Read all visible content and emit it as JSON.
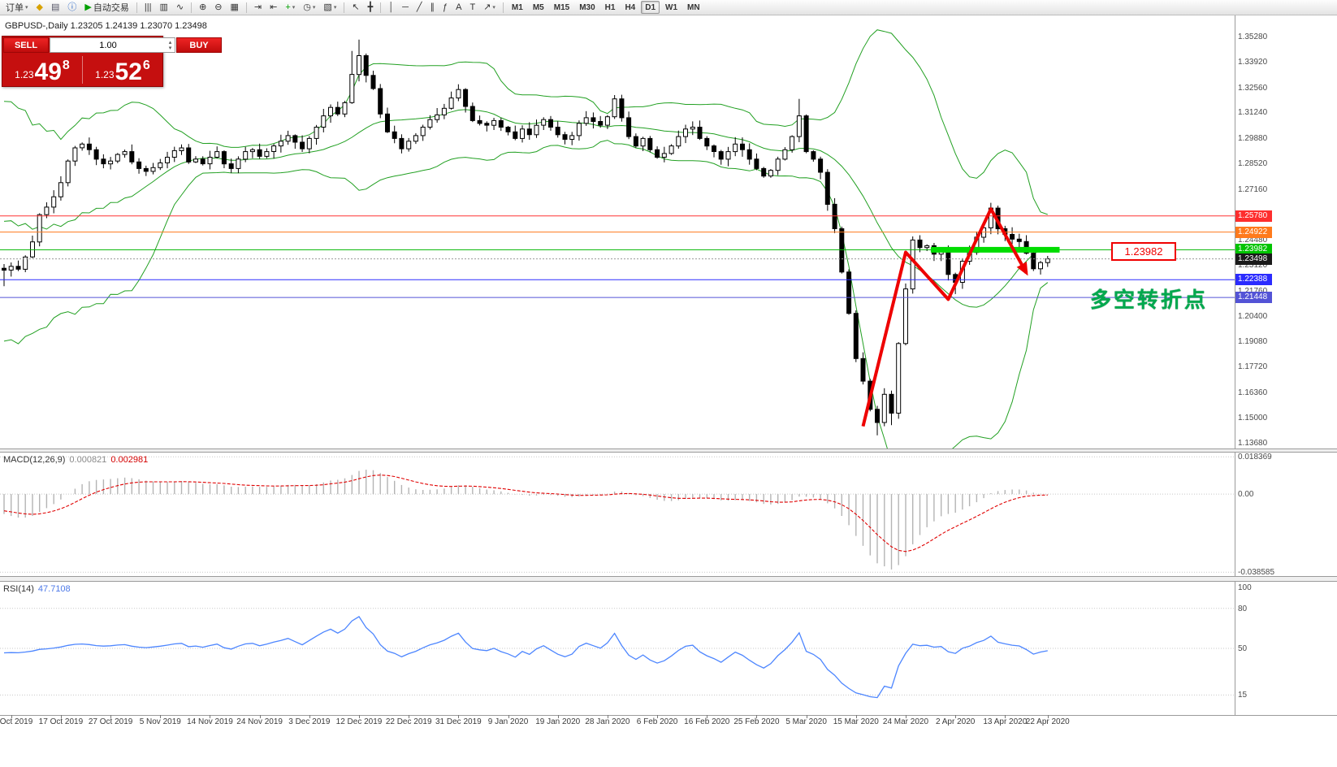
{
  "icons": {
    "caret_down": "▾",
    "caret_up": "▴"
  },
  "toolbar": {
    "active_timeframe": "D1",
    "items": [
      {
        "type": "text",
        "name": "orders-menu-button",
        "label": "订单",
        "caret": true
      },
      {
        "type": "icon",
        "name": "symbols-icon",
        "glyph": "◆",
        "color": "#d8a200"
      },
      {
        "type": "icon",
        "name": "chart-window-icon",
        "glyph": "▤",
        "color": "#556"
      },
      {
        "type": "icon",
        "name": "help-icon",
        "glyph": "ⓘ",
        "color": "#1f5fc4"
      },
      {
        "type": "text",
        "name": "autotrading-button",
        "label": "自动交易",
        "glyph": "▶",
        "color": "#00a000"
      },
      {
        "type": "sep"
      },
      {
        "type": "icon",
        "name": "bar-chart-icon",
        "glyph": "|||",
        "color": "#333"
      },
      {
        "type": "icon",
        "name": "candlestick-chart-icon",
        "glyph": "▥",
        "color": "#333"
      },
      {
        "type": "icon",
        "name": "line-chart-icon",
        "glyph": "∿",
        "color": "#333"
      },
      {
        "type": "sep"
      },
      {
        "type": "icon",
        "name": "zoom-in-icon",
        "glyph": "⊕",
        "color": "#333"
      },
      {
        "type": "icon",
        "name": "zoom-out-icon",
        "glyph": "⊖",
        "color": "#333"
      },
      {
        "type": "icon",
        "name": "tile-windows-icon",
        "glyph": "▦",
        "color": "#333"
      },
      {
        "type": "sep"
      },
      {
        "type": "icon",
        "name": "auto-scroll-icon",
        "glyph": "⇥",
        "color": "#333"
      },
      {
        "type": "icon",
        "name": "chart-shift-icon",
        "glyph": "⇤",
        "color": "#333"
      },
      {
        "type": "icon",
        "name": "indicators-icon",
        "glyph": "+",
        "color": "#00a000",
        "caret": true
      },
      {
        "type": "icon",
        "name": "periods-icon",
        "glyph": "◷",
        "color": "#333",
        "caret": true
      },
      {
        "type": "icon",
        "name": "templates-icon",
        "glyph": "▧",
        "color": "#333",
        "caret": true
      },
      {
        "type": "sep"
      },
      {
        "type": "icon",
        "name": "cursor-icon",
        "glyph": "↖",
        "color": "#333"
      },
      {
        "type": "icon",
        "name": "crosshair-icon",
        "glyph": "╋",
        "color": "#333"
      },
      {
        "type": "sep"
      },
      {
        "type": "icon",
        "name": "vertical-line-icon",
        "glyph": "│",
        "color": "#333"
      },
      {
        "type": "icon",
        "name": "horizontal-line-icon",
        "glyph": "─",
        "color": "#333"
      },
      {
        "type": "icon",
        "name": "trendline-icon",
        "glyph": "╱",
        "color": "#333"
      },
      {
        "type": "icon",
        "name": "channel-icon",
        "glyph": "∥",
        "color": "#333"
      },
      {
        "type": "icon",
        "name": "fibonacci-icon",
        "glyph": "ƒ",
        "color": "#333"
      },
      {
        "type": "icon",
        "name": "text-tool-icon",
        "glyph": "A",
        "color": "#333"
      },
      {
        "type": "icon",
        "name": "label-tool-icon",
        "glyph": "T",
        "color": "#333"
      },
      {
        "type": "icon",
        "name": "arrows-tool-icon",
        "glyph": "↗",
        "color": "#333",
        "caret": true
      },
      {
        "type": "sep"
      },
      {
        "type": "tf",
        "name": "timeframe-m1",
        "label": "M1"
      },
      {
        "type": "tf",
        "name": "timeframe-m5",
        "label": "M5"
      },
      {
        "type": "tf",
        "name": "timeframe-m15",
        "label": "M15"
      },
      {
        "type": "tf",
        "name": "timeframe-m30",
        "label": "M30"
      },
      {
        "type": "tf",
        "name": "timeframe-h1",
        "label": "H1"
      },
      {
        "type": "tf",
        "name": "timeframe-h4",
        "label": "H4"
      },
      {
        "type": "tf",
        "name": "timeframe-d1",
        "label": "D1"
      },
      {
        "type": "tf",
        "name": "timeframe-w1",
        "label": "W1"
      },
      {
        "type": "tf",
        "name": "timeframe-mn",
        "label": "MN"
      }
    ]
  },
  "trade_panel": {
    "sell_label": "SELL",
    "buy_label": "BUY",
    "volume": "1.00",
    "sell_small": "1.23",
    "sell_big": "49",
    "sell_sup": "8",
    "buy_small": "1.23",
    "buy_big": "52",
    "buy_sup": "6"
  },
  "chart": {
    "symbol_line": "GBPUSD-,Daily 1.23205 1.24139 1.23070 1.23498",
    "grid_labels": [
      "1.35280",
      "1.33920",
      "1.32560",
      "1.31240",
      "1.29880",
      "1.28520",
      "1.27160",
      "1.24480",
      "1.23120",
      "1.21760",
      "1.20400",
      "1.19080",
      "1.17720",
      "1.16360",
      "1.15000",
      "1.13680"
    ],
    "price_tags": [
      {
        "text": "1.25780",
        "price": 1.2578,
        "bg": "#fe2e2e"
      },
      {
        "text": "1.24922",
        "price": 1.24922,
        "bg": "#ff7a1c"
      },
      {
        "text": "1.23982",
        "price": 1.23982,
        "bg": "#00c400"
      },
      {
        "text": "1.23498",
        "price": 1.23498,
        "bg": "#1a1a1a"
      },
      {
        "text": "1.22388",
        "price": 1.22388,
        "bg": "#2b2bff"
      },
      {
        "text": "1.21448",
        "price": 1.21448,
        "bg": "#5353d6"
      }
    ],
    "hlines": [
      {
        "price": 1.2578,
        "color": "#ff3333"
      },
      {
        "price": 1.24922,
        "color": "#ff7a1c"
      },
      {
        "price": 1.23982,
        "color": "#00b400"
      },
      {
        "price": 1.23498,
        "color": "#9a9a9a",
        "dash": "2,2"
      },
      {
        "price": 1.22388,
        "color": "#2b2bff"
      },
      {
        "price": 1.21448,
        "color": "#5353d6"
      }
    ],
    "highlight": {
      "price": 1.23982,
      "from_index": 131,
      "to_index": 148
    },
    "price_box_label": "1.23982",
    "annotation_text": "多空转折点",
    "zigzag": [
      [
        121,
        1.146
      ],
      [
        127,
        1.2385
      ],
      [
        133,
        1.2135
      ],
      [
        139,
        1.2615
      ],
      [
        144,
        1.2275
      ]
    ],
    "colors": {
      "bollinger": "#22a022",
      "zigzag": "#ee0000",
      "highlight": "#00dd00",
      "rsi": "#4d86ff",
      "macd_hist": "#b4b4b4",
      "macd_signal": "#e00000",
      "bull_fill": "#ffffff",
      "bear_fill": "#000000",
      "candle_stroke": "#000000"
    }
  },
  "chart_data": {
    "type": "candlestick",
    "symbol": "GBPUSD",
    "period": "Daily",
    "pre_closes": [
      1.295,
      1.225,
      1.285,
      1.21,
      1.305,
      1.23,
      1.29,
      1.215,
      1.3,
      1.235,
      1.275,
      1.22,
      1.295,
      1.24,
      1.285,
      1.225,
      1.29,
      1.245,
      1.27,
      1.23
    ],
    "closes": [
      1.229,
      1.231,
      1.2295,
      1.236,
      1.244,
      1.2585,
      1.2625,
      1.268,
      1.2755,
      1.287,
      1.294,
      1.296,
      1.293,
      1.288,
      1.2855,
      1.287,
      1.2905,
      1.292,
      1.2865,
      1.283,
      1.2815,
      1.2835,
      1.286,
      1.289,
      1.2925,
      1.294,
      1.2865,
      1.288,
      1.2855,
      1.289,
      1.292,
      1.2855,
      1.283,
      1.288,
      1.292,
      1.293,
      1.2895,
      1.292,
      1.295,
      1.2975,
      1.3005,
      1.297,
      1.2935,
      1.299,
      1.305,
      1.311,
      1.3155,
      1.312,
      1.318,
      1.333,
      1.343,
      1.3325,
      1.3255,
      1.312,
      1.3025,
      1.299,
      1.2935,
      1.2975,
      1.3005,
      1.305,
      1.309,
      1.3115,
      1.315,
      1.3205,
      1.325,
      1.316,
      1.3085,
      1.307,
      1.306,
      1.3085,
      1.305,
      1.3025,
      1.299,
      1.304,
      1.301,
      1.306,
      1.309,
      1.305,
      1.301,
      1.2985,
      1.3005,
      1.307,
      1.31,
      1.308,
      1.306,
      1.3105,
      1.32,
      1.31,
      1.3,
      1.295,
      1.299,
      1.293,
      1.289,
      1.291,
      1.295,
      1.3,
      1.304,
      1.305,
      1.299,
      1.295,
      1.292,
      1.288,
      1.292,
      1.296,
      1.293,
      1.288,
      1.283,
      1.279,
      1.282,
      1.288,
      1.293,
      1.3,
      1.311,
      1.292,
      1.288,
      1.281,
      1.264,
      1.251,
      1.228,
      1.206,
      1.182,
      1.17,
      1.155,
      1.148,
      1.163,
      1.153,
      1.19,
      1.219,
      1.245,
      1.241,
      1.242,
      1.2375,
      1.239,
      1.2267,
      1.2225,
      1.2337,
      1.2384,
      1.2465,
      1.2515,
      1.262,
      1.251,
      1.248,
      1.2455,
      1.2442,
      1.238,
      1.2297,
      1.233,
      1.235
    ],
    "wick_overrides": {
      "0": {
        "l": 1.2205
      },
      "49": {
        "h": 1.3455
      },
      "50": {
        "h": 1.3515
      },
      "112": {
        "h": 1.32
      },
      "123": {
        "l": 1.1412
      },
      "125": {
        "l": 1.1466
      },
      "134": {
        "l": 1.2163
      },
      "139": {
        "h": 1.2648
      }
    },
    "dates": [
      [
        1,
        "Oct 2019"
      ],
      [
        8,
        "17 Oct 2019"
      ],
      [
        15,
        "27 Oct 2019"
      ],
      [
        22,
        "5 Nov 2019"
      ],
      [
        29,
        "14 Nov 2019"
      ],
      [
        36,
        "24 Nov 2019"
      ],
      [
        43,
        "3 Dec 2019"
      ],
      [
        50,
        "12 Dec 2019"
      ],
      [
        57,
        "22 Dec 2019"
      ],
      [
        64,
        "31 Dec 2019"
      ],
      [
        71,
        "9 Jan 2020"
      ],
      [
        78,
        "19 Jan 2020"
      ],
      [
        85,
        "28 Jan 2020"
      ],
      [
        92,
        "6 Feb 2020"
      ],
      [
        99,
        "16 Feb 2020"
      ],
      [
        106,
        "25 Feb 2020"
      ],
      [
        113,
        "5 Mar 2020"
      ],
      [
        120,
        "15 Mar 2020"
      ],
      [
        127,
        "24 Mar 2020"
      ],
      [
        134,
        "2 Apr 2020"
      ],
      [
        141,
        "13 Apr 2020"
      ],
      [
        147,
        "22 Apr 2020"
      ]
    ],
    "indicators": [
      {
        "type": "Bollinger Bands",
        "params": [
          20,
          2
        ]
      },
      {
        "type": "MACD",
        "params": [
          12,
          26,
          9
        ]
      },
      {
        "type": "RSI",
        "params": [
          14
        ]
      }
    ]
  },
  "macd_panel": {
    "name": "MACD(12,26,9)",
    "main_value": "0.000821",
    "signal_value": "0.002981",
    "axis_max": "0.018369",
    "axis_zero": "0.00",
    "axis_min": "-0.038585"
  },
  "rsi_panel": {
    "name": "RSI(14)",
    "value": "47.7108",
    "levels": [
      "100",
      "80",
      "50",
      "15"
    ]
  }
}
